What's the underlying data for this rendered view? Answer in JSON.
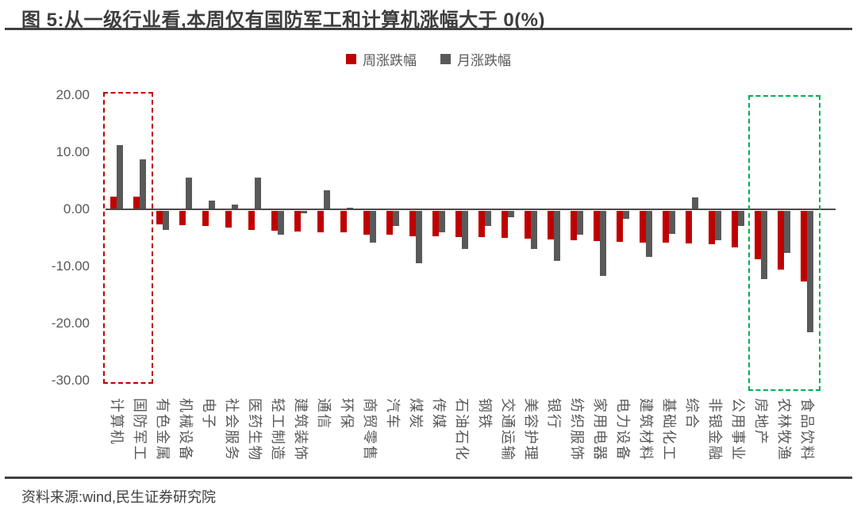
{
  "figure": {
    "title": "图 5:从一级行业看,本周仅有国防军工和计算机涨幅大于 0(%)",
    "source": "资料来源:wind,民生证券研究院"
  },
  "legend": [
    {
      "label": "周涨跌幅",
      "color": "#C00000"
    },
    {
      "label": "月涨跌幅",
      "color": "#595959"
    }
  ],
  "colors": {
    "week_series": "#C00000",
    "month_series": "#595959",
    "highlight_box_left": "#C00000",
    "highlight_box_right": "#00B050",
    "axis_line": "#4a4a4a",
    "text": "#595959"
  },
  "chart_data": {
    "type": "bar",
    "title": "图 5:从一级行业看,本周仅有国防军工和计算机涨幅大于 0(%)",
    "xlabel": "",
    "ylabel": "",
    "ylim": [
      -30,
      20
    ],
    "yticks": [
      "20.00",
      "10.00",
      "0.00",
      "-10.00",
      "-20.00",
      "-30.00"
    ],
    "grid": false,
    "legend_position": "top",
    "categories": [
      "计算机",
      "国防军工",
      "有色金属",
      "机械设备",
      "电子",
      "社会服务",
      "医药生物",
      "轻工制造",
      "建筑装饰",
      "通信",
      "环保",
      "商贸零售",
      "汽车",
      "煤炭",
      "传媒",
      "石油石化",
      "钢铁",
      "交通运输",
      "美容护理",
      "银行",
      "纺织服饰",
      "家用电器",
      "电力设备",
      "建筑材料",
      "基础化工",
      "综合",
      "非银金融",
      "公用事业",
      "房地产",
      "农林牧渔",
      "食品饮料"
    ],
    "series": [
      {
        "name": "周涨跌幅",
        "color": "#C00000",
        "values": [
          2.2,
          2.2,
          -2.4,
          -2.5,
          -2.7,
          -2.9,
          -3.3,
          -3.5,
          -3.6,
          -3.7,
          -3.8,
          -4.1,
          -4.2,
          -4.5,
          -4.5,
          -4.6,
          -4.6,
          -4.7,
          -4.8,
          -5.0,
          -5.2,
          -5.3,
          -5.4,
          -5.5,
          -5.5,
          -5.7,
          -5.9,
          -6.4,
          -8.5,
          -10.3,
          -12.3
        ]
      },
      {
        "name": "月涨跌幅",
        "color": "#595959",
        "values": [
          11.3,
          8.7,
          -3.3,
          5.6,
          1.5,
          0.8,
          5.5,
          -4.1,
          -0.4,
          3.4,
          0.3,
          -5.6,
          -2.6,
          -9.2,
          -3.8,
          -6.7,
          -2.6,
          -1.1,
          -6.6,
          -8.8,
          -4.1,
          -11.4,
          -1.4,
          -8.0,
          -4.0,
          2.1,
          -5.1,
          -2.7,
          -11.9,
          -7.4,
          -21.2
        ]
      }
    ],
    "annotations": [
      {
        "type": "dashed-box",
        "color": "#C00000",
        "categories": [
          "计算机",
          "国防军工"
        ]
      },
      {
        "type": "dashed-box",
        "color": "#00B050",
        "categories": [
          "房地产",
          "农林牧渔",
          "食品饮料"
        ]
      }
    ]
  }
}
